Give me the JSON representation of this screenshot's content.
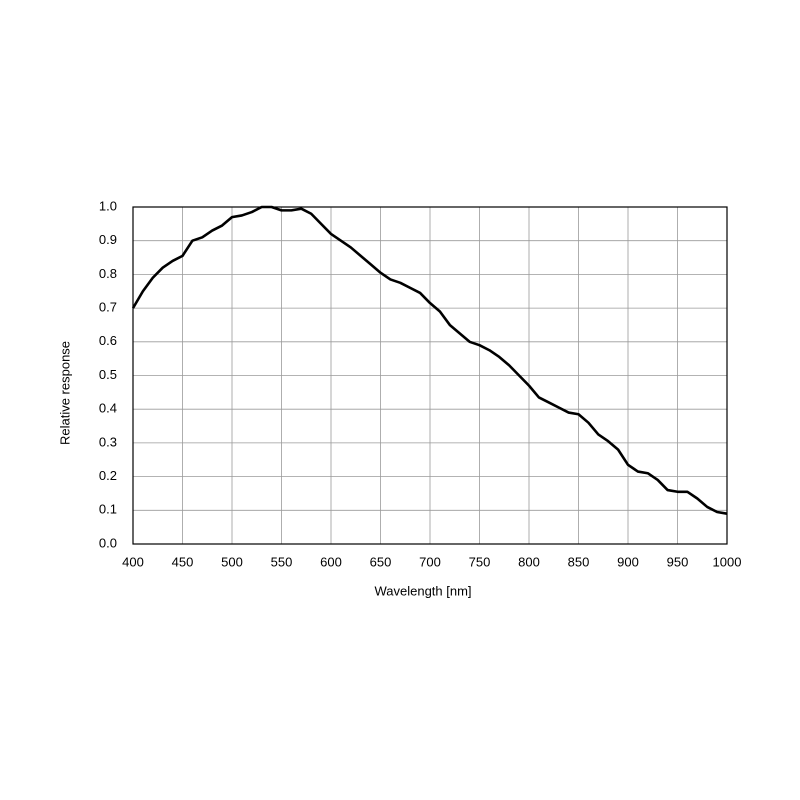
{
  "chart_data": {
    "type": "line",
    "x_label": "Wavelength [nm]",
    "y_label": "Relative response",
    "x": [
      400,
      410,
      420,
      430,
      440,
      450,
      460,
      470,
      480,
      490,
      500,
      510,
      520,
      530,
      540,
      550,
      560,
      570,
      580,
      590,
      600,
      610,
      620,
      630,
      640,
      650,
      660,
      670,
      680,
      690,
      700,
      710,
      720,
      730,
      740,
      750,
      760,
      770,
      780,
      790,
      800,
      810,
      820,
      830,
      840,
      850,
      860,
      870,
      880,
      890,
      900,
      910,
      920,
      930,
      940,
      950,
      960,
      970,
      980,
      990,
      1000
    ],
    "series": [
      {
        "color": "#000000",
        "values": [
          0.7,
          0.75,
          0.79,
          0.82,
          0.84,
          0.855,
          0.9,
          0.91,
          0.93,
          0.945,
          0.97,
          0.975,
          0.985,
          1.0,
          1.0,
          0.99,
          0.99,
          0.995,
          0.98,
          0.95,
          0.92,
          0.9,
          0.88,
          0.855,
          0.83,
          0.805,
          0.785,
          0.775,
          0.76,
          0.745,
          0.715,
          0.69,
          0.65,
          0.625,
          0.6,
          0.59,
          0.575,
          0.555,
          0.53,
          0.5,
          0.47,
          0.435,
          0.42,
          0.405,
          0.39,
          0.385,
          0.36,
          0.325,
          0.305,
          0.28,
          0.235,
          0.215,
          0.21,
          0.19,
          0.16,
          0.155,
          0.155,
          0.135,
          0.11,
          0.095,
          0.09
        ]
      }
    ],
    "xlim": [
      400,
      1000
    ],
    "xticks": [
      400,
      450,
      500,
      550,
      600,
      650,
      700,
      750,
      800,
      850,
      900,
      950,
      1000
    ],
    "ylim": [
      0,
      1
    ],
    "yticks": [
      {
        "value": 0,
        "label": "0.0"
      },
      0.1,
      0.2,
      0.3,
      0.4,
      0.5,
      0.6,
      0.7,
      0.8,
      0.9,
      {
        "value": 1,
        "label": "1.0"
      }
    ],
    "grid": true
  }
}
